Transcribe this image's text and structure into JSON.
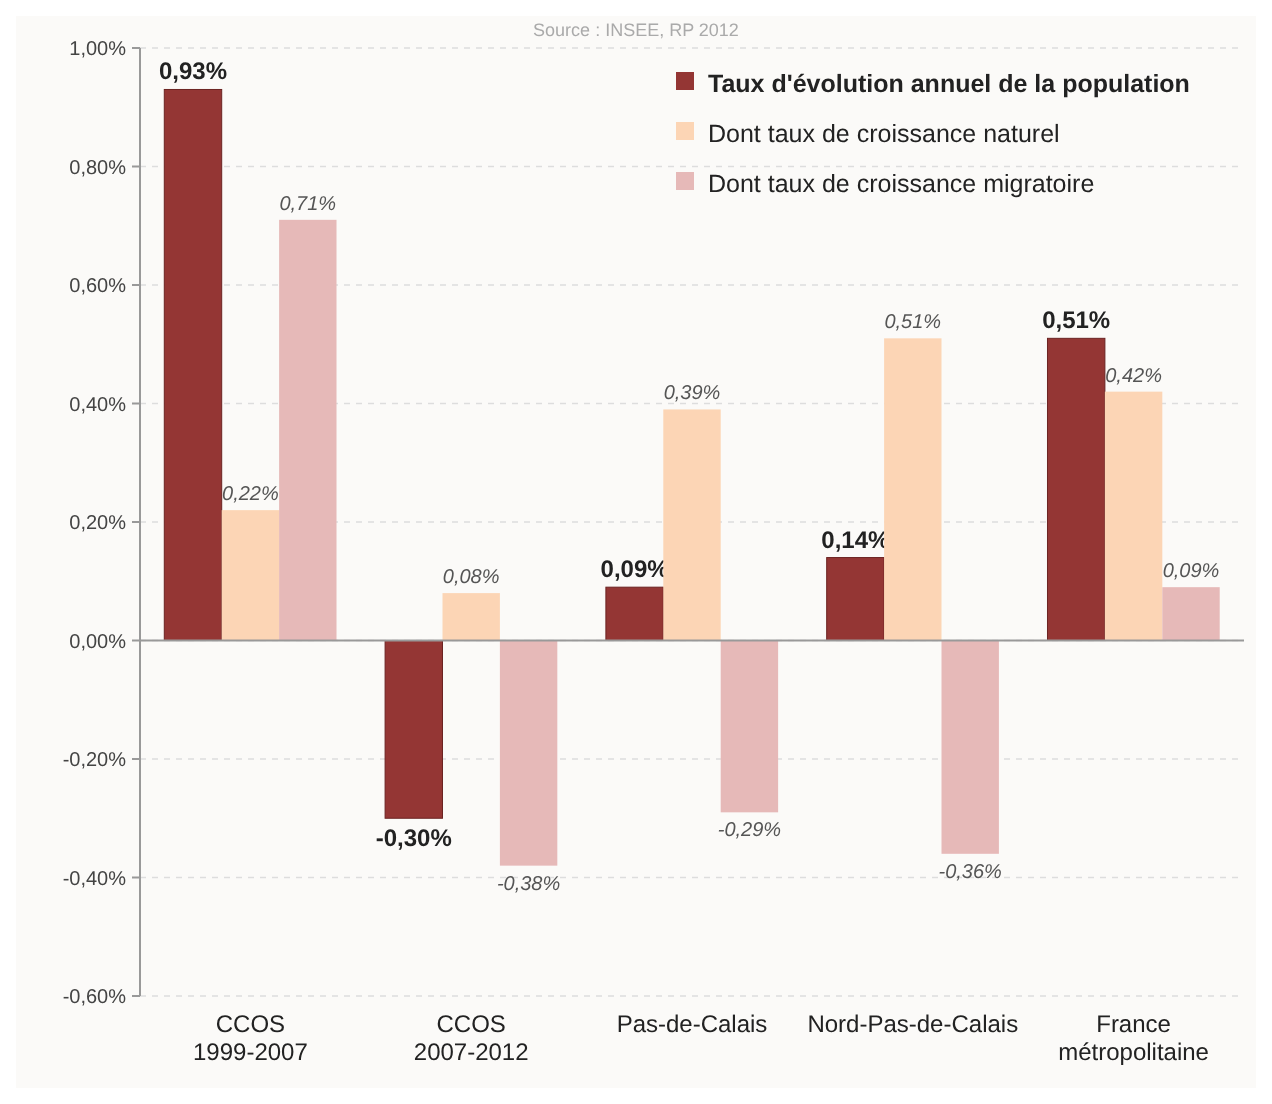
{
  "chart_data": {
    "type": "bar",
    "annotations": [
      "Source : INSEE, RP 2012"
    ],
    "categories": [
      "CCOS 1999-2007",
      "CCOS 2007-2012",
      "Pas-de-Calais",
      "Nord-Pas-de-Calais",
      "France métropolitaine"
    ],
    "series": [
      {
        "name": "Taux d'évolution annuel de la population",
        "color": "#943634",
        "values": [
          0.93,
          -0.3,
          0.09,
          0.14,
          0.51
        ],
        "value_labels": [
          "0,93%",
          "-0,30%",
          "0,09%",
          "0,14%",
          "0,51%"
        ]
      },
      {
        "name": "Dont taux de croissance naturel",
        "color": "#fcd5b5",
        "values": [
          0.22,
          0.08,
          0.39,
          0.51,
          0.42
        ],
        "value_labels": [
          "0,22%",
          "0,08%",
          "0,39%",
          "0,51%",
          "0,42%"
        ]
      },
      {
        "name": "Dont taux de croissance migratoire",
        "color": "#e6b9b8",
        "values": [
          0.71,
          -0.38,
          -0.29,
          -0.36,
          0.09
        ],
        "value_labels": [
          "0,71%",
          "-0,38%",
          "-0,29%",
          "-0,36%",
          "0,09%"
        ]
      }
    ],
    "ylim": [
      -0.6,
      1.0
    ],
    "yticks": [
      {
        "value": -0.6,
        "label": "-0,60%"
      },
      {
        "value": -0.4,
        "label": "-0,40%"
      },
      {
        "value": -0.2,
        "label": "-0,20%"
      },
      {
        "value": 0,
        "label": "0,00%"
      },
      {
        "value": 0.2,
        "label": "0,20%"
      },
      {
        "value": 0.4,
        "label": "0,40%"
      },
      {
        "value": 0.6,
        "label": "0,60%"
      },
      {
        "value": 0.8,
        "label": "0,80%"
      },
      {
        "value": 1.0,
        "label": "1,00%"
      }
    ],
    "grid": "y",
    "legend": "top right"
  }
}
